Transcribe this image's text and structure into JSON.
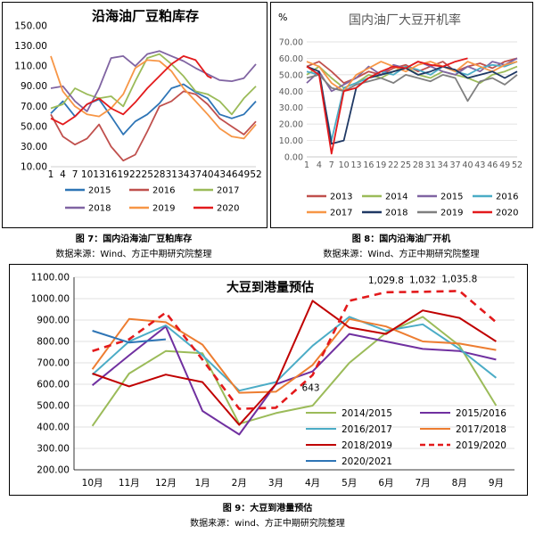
{
  "charts": [
    {
      "type": "line",
      "title": "沿海油厂豆粕库存",
      "ylim": [
        10,
        150
      ],
      "ytick_labels": [
        "10.00",
        "30.00",
        "50.00",
        "70.00",
        "90.00",
        "110.00",
        "130.00",
        "150.00"
      ],
      "xtick_labels": [
        "1",
        "4",
        "7",
        "10",
        "13",
        "16",
        "19",
        "22",
        "25",
        "28",
        "31",
        "34",
        "37",
        "40",
        "43",
        "46",
        "49",
        "52"
      ],
      "x_max": 52,
      "legend": [
        "2015",
        "2016",
        "2017",
        "2018",
        "2019",
        "2020"
      ],
      "series": [
        {
          "name": "2015",
          "color": "#2e75b6",
          "x": [
            1,
            4,
            7,
            10,
            13,
            16,
            19,
            22,
            25,
            28,
            31,
            34,
            37,
            40,
            43,
            46,
            49,
            52
          ],
          "values": [
            63,
            75,
            60,
            72,
            77,
            60,
            42,
            55,
            62,
            73,
            88,
            92,
            84,
            78,
            62,
            58,
            62,
            75
          ]
        },
        {
          "name": "2016",
          "color": "#c0504d",
          "x": [
            1,
            4,
            7,
            10,
            13,
            16,
            19,
            22,
            25,
            28,
            31,
            34,
            37,
            40,
            43,
            46,
            49,
            52
          ],
          "values": [
            62,
            40,
            32,
            38,
            52,
            30,
            16,
            22,
            45,
            70,
            75,
            85,
            82,
            72,
            58,
            50,
            42,
            55
          ]
        },
        {
          "name": "2017",
          "color": "#9bbb59",
          "x": [
            1,
            4,
            7,
            10,
            13,
            16,
            19,
            22,
            25,
            28,
            31,
            34,
            37,
            40,
            43,
            46,
            49,
            52
          ],
          "values": [
            68,
            72,
            88,
            82,
            78,
            80,
            70,
            95,
            118,
            122,
            112,
            100,
            85,
            82,
            75,
            62,
            78,
            90
          ]
        },
        {
          "name": "2018",
          "color": "#8064a2",
          "x": [
            1,
            4,
            7,
            10,
            13,
            16,
            19,
            22,
            25,
            28,
            31,
            34,
            37,
            40,
            43,
            46,
            49,
            52
          ],
          "values": [
            88,
            90,
            75,
            65,
            88,
            118,
            120,
            110,
            122,
            125,
            120,
            115,
            108,
            102,
            96,
            95,
            98,
            112
          ]
        },
        {
          "name": "2019",
          "color": "#f79646",
          "x": [
            1,
            4,
            7,
            10,
            13,
            16,
            19,
            22,
            25,
            28,
            31,
            34,
            37,
            40,
            43,
            46,
            49,
            52
          ],
          "values": [
            120,
            85,
            70,
            62,
            60,
            68,
            82,
            108,
            116,
            115,
            105,
            88,
            75,
            62,
            48,
            40,
            38,
            52
          ]
        },
        {
          "name": "2020",
          "color": "#e31a1c",
          "x": [
            1,
            4,
            7,
            10,
            13,
            16,
            19,
            22,
            25,
            28,
            31,
            34,
            37,
            40,
            41
          ],
          "values": [
            58,
            52,
            60,
            72,
            78,
            68,
            62,
            74,
            88,
            100,
            112,
            120,
            116,
            100,
            98
          ]
        }
      ]
    },
    {
      "type": "line",
      "title": "国内油厂大豆开机率",
      "unit": "%",
      "ylim": [
        0,
        70
      ],
      "ytick_labels": [
        "0.00",
        "10.00",
        "20.00",
        "30.00",
        "40.00",
        "50.00",
        "60.00",
        "70.00"
      ],
      "xtick_labels": [
        "1",
        "4",
        "7",
        "10",
        "13",
        "16",
        "19",
        "22",
        "25",
        "28",
        "31",
        "34",
        "37",
        "40",
        "43",
        "46",
        "49",
        "52"
      ],
      "x_max": 52,
      "legend": [
        "2013",
        "2014",
        "2015",
        "2016",
        "2017",
        "2018",
        "2019",
        "2020"
      ],
      "series": [
        {
          "name": "2013",
          "color": "#c0504d",
          "x": [
            1,
            4,
            7,
            10,
            13,
            16,
            19,
            22,
            25,
            28,
            31,
            34,
            37,
            40,
            43,
            46,
            49,
            52
          ],
          "values": [
            55,
            58,
            52,
            45,
            48,
            52,
            50,
            54,
            56,
            52,
            55,
            58,
            52,
            55,
            57,
            54,
            58,
            60
          ]
        },
        {
          "name": "2014",
          "color": "#9bbb59",
          "x": [
            1,
            4,
            7,
            10,
            13,
            16,
            19,
            22,
            25,
            28,
            31,
            34,
            37,
            40,
            43,
            46,
            49,
            52
          ],
          "values": [
            50,
            55,
            48,
            42,
            45,
            50,
            48,
            52,
            55,
            50,
            48,
            52,
            50,
            48,
            45,
            50,
            52,
            55
          ]
        },
        {
          "name": "2015",
          "color": "#8064a2",
          "x": [
            1,
            4,
            7,
            10,
            13,
            16,
            19,
            22,
            25,
            28,
            31,
            34,
            37,
            40,
            43,
            46,
            49,
            52
          ],
          "values": [
            45,
            52,
            40,
            44,
            48,
            55,
            50,
            56,
            54,
            58,
            55,
            52,
            50,
            55,
            52,
            58,
            56,
            60
          ]
        },
        {
          "name": "2016",
          "color": "#4bacc6",
          "x": [
            1,
            4,
            7,
            10,
            13,
            16,
            19,
            22,
            25,
            28,
            31,
            34,
            37,
            40,
            43,
            46,
            49,
            52
          ],
          "values": [
            52,
            50,
            10,
            42,
            45,
            48,
            52,
            50,
            55,
            53,
            50,
            55,
            52,
            50,
            54,
            56,
            55,
            58
          ]
        },
        {
          "name": "2017",
          "color": "#f79646",
          "x": [
            1,
            4,
            7,
            10,
            13,
            16,
            19,
            22,
            25,
            28,
            31,
            34,
            37,
            40,
            43,
            46,
            49,
            52
          ],
          "values": [
            58,
            55,
            45,
            40,
            50,
            54,
            58,
            55,
            52,
            56,
            58,
            55,
            52,
            58,
            55,
            52,
            56,
            58
          ]
        },
        {
          "name": "2018",
          "color": "#1f3864",
          "x": [
            1,
            4,
            7,
            10,
            13,
            16,
            19,
            22,
            25,
            28,
            31,
            34,
            37,
            40,
            43,
            46,
            49,
            52
          ],
          "values": [
            55,
            52,
            8,
            10,
            42,
            48,
            50,
            52,
            54,
            50,
            52,
            55,
            53,
            48,
            50,
            52,
            48,
            52
          ]
        },
        {
          "name": "2019",
          "color": "#7f7f7f",
          "x": [
            1,
            4,
            7,
            10,
            13,
            16,
            19,
            22,
            25,
            28,
            31,
            34,
            37,
            40,
            43,
            46,
            49,
            52
          ],
          "values": [
            48,
            50,
            42,
            40,
            44,
            46,
            48,
            45,
            50,
            48,
            46,
            50,
            48,
            34,
            46,
            48,
            44,
            50
          ]
        },
        {
          "name": "2020",
          "color": "#e31a1c",
          "x": [
            1,
            4,
            7,
            10,
            13,
            16,
            19,
            22,
            25,
            28,
            31,
            34,
            37,
            40
          ],
          "values": [
            55,
            50,
            2,
            40,
            42,
            48,
            52,
            55,
            54,
            58,
            56,
            55,
            58,
            60
          ]
        }
      ]
    },
    {
      "type": "line",
      "title": "大豆到港量预估",
      "ylim": [
        200,
        1100
      ],
      "ytick_labels": [
        "200.00",
        "300.00",
        "400.00",
        "500.00",
        "600.00",
        "700.00",
        "800.00",
        "900.00",
        "1000.00",
        "1100.00"
      ],
      "categories": [
        "10月",
        "11月",
        "12月",
        "1月",
        "2月",
        "3月",
        "4月",
        "5月",
        "6月",
        "7月",
        "8月",
        "9月"
      ],
      "legend": [
        "2014/2015",
        "2015/2016",
        "2016/2017",
        "2017/2018",
        "2018/2019",
        "2019/2020",
        "2020/2021"
      ],
      "series": [
        {
          "name": "2014/2015",
          "color": "#9bbb59",
          "dashed": false,
          "values": [
            405,
            650,
            755,
            745,
            415,
            465,
            500,
            700,
            840,
            915,
            780,
            500
          ]
        },
        {
          "name": "2015/2016",
          "color": "#7030a0",
          "dashed": false,
          "values": [
            595,
            735,
            870,
            475,
            365,
            600,
            660,
            835,
            800,
            765,
            755,
            715
          ]
        },
        {
          "name": "2016/2017",
          "color": "#4bacc6",
          "dashed": false,
          "values": [
            645,
            800,
            875,
            735,
            570,
            610,
            780,
            915,
            850,
            880,
            765,
            630
          ]
        },
        {
          "name": "2017/2018",
          "color": "#ed7d31",
          "dashed": false,
          "values": [
            670,
            905,
            890,
            785,
            560,
            565,
            690,
            905,
            870,
            800,
            790,
            760
          ]
        },
        {
          "name": "2018/2019",
          "color": "#c00000",
          "dashed": false,
          "values": [
            650,
            590,
            645,
            610,
            410,
            600,
            990,
            865,
            835,
            945,
            910,
            800
          ]
        },
        {
          "name": "2019/2020",
          "color": "#e31a1c",
          "dashed": true,
          "values": [
            755,
            810,
            935,
            715,
            485,
            490,
            643,
            990,
            1029.8,
            1032,
            1035.8,
            890
          ]
        },
        {
          "name": "2020/2021",
          "color": "#2e75b6",
          "dashed": false,
          "values": [
            850,
            795,
            810,
            null,
            null,
            null,
            null,
            null,
            null,
            null,
            null,
            null
          ]
        }
      ],
      "annotations": [
        {
          "category_index": 6,
          "value": 643,
          "text": "643"
        },
        {
          "category_index": 8,
          "value": 1029.8,
          "text": "1,029.8"
        },
        {
          "category_index": 9,
          "value": 1032,
          "text": "1,032"
        },
        {
          "category_index": 10,
          "value": 1035.8,
          "text": "1,035.8"
        }
      ]
    }
  ],
  "captions": {
    "fig7": "图 7：国内沿海油厂豆粕库存",
    "fig8": "图 8：国内沿海油厂开机",
    "fig9": "图 9：大豆到港量预估",
    "source": "数据来源：Wind、方正中期研究院整理",
    "source9": "数据来源：wind、方正中期研究院整理"
  }
}
